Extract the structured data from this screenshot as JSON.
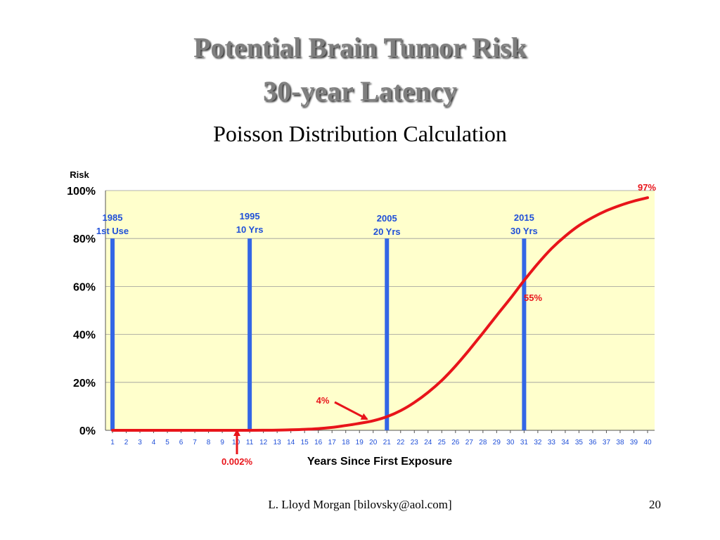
{
  "slide": {
    "title_line1": "Potential Brain Tumor Risk",
    "title_line2": "30-year Latency",
    "subtitle": "Poisson Distribution Calculation",
    "footer": "L. Lloyd Morgan  [bilovsky@aol.com]",
    "page_number": "20"
  },
  "colors": {
    "plot_bg": "#ffffcc",
    "curve": "#e8141a",
    "marker": "#3366e6",
    "marker_text": "#1f4fd8",
    "label_red": "#e8141a",
    "gridline": "#9a9a9a"
  },
  "chart_data": {
    "type": "line",
    "title": "Poisson Distribution Calculation",
    "xlabel": "Years Since First Exposure",
    "ylabel": "Risk",
    "xlim": [
      1,
      40
    ],
    "ylim": [
      0,
      100
    ],
    "grid": true,
    "y_ticks": [
      {
        "value": 0,
        "label": "0%"
      },
      {
        "value": 20,
        "label": "20%"
      },
      {
        "value": 40,
        "label": "40%"
      },
      {
        "value": 60,
        "label": "60%"
      },
      {
        "value": 80,
        "label": "80%"
      },
      {
        "value": 100,
        "label": "100%"
      }
    ],
    "x_ticks": [
      1,
      2,
      3,
      4,
      5,
      6,
      7,
      8,
      9,
      10,
      11,
      12,
      13,
      14,
      15,
      16,
      17,
      18,
      19,
      20,
      21,
      22,
      23,
      24,
      25,
      26,
      27,
      28,
      29,
      30,
      31,
      32,
      33,
      34,
      35,
      36,
      37,
      38,
      39,
      40
    ],
    "series": [
      {
        "x": [
          1,
          2,
          3,
          4,
          5,
          6,
          7,
          8,
          9,
          10,
          11,
          12,
          13,
          14,
          15,
          16,
          17,
          18,
          19,
          20,
          21,
          22,
          23,
          24,
          25,
          26,
          27,
          28,
          29,
          30,
          31,
          32,
          33,
          34,
          35,
          36,
          37,
          38,
          39,
          40
        ],
        "values": [
          0,
          0,
          0,
          0,
          0,
          0,
          0,
          0,
          0,
          0.002,
          0.01,
          0.03,
          0.08,
          0.2,
          0.4,
          0.7,
          1.2,
          2.0,
          2.9,
          4,
          5.7,
          8.2,
          11.6,
          15.8,
          20.8,
          26.8,
          33.5,
          40.6,
          47.9,
          55,
          62.5,
          69.5,
          75.8,
          81,
          85.4,
          88.8,
          91.6,
          93.8,
          95.6,
          97
        ]
      }
    ],
    "markers": [
      {
        "x": 1,
        "line1": "1985",
        "line2": "1st Use"
      },
      {
        "x": 11,
        "line1": "1995",
        "line2": "10 Yrs"
      },
      {
        "x": 21,
        "line1": "2005",
        "line2": "20 Yrs"
      },
      {
        "x": 31,
        "line1": "2015",
        "line2": "30 Yrs"
      }
    ],
    "annotations": [
      {
        "text": "97%",
        "x": 40,
        "y": 97
      },
      {
        "text": "55%",
        "x": 30,
        "y": 55
      },
      {
        "text": "4%",
        "x": 20,
        "y": 4,
        "arrow": true
      },
      {
        "text": "0.002%",
        "x": 10,
        "y": 0.002,
        "arrow": true
      }
    ]
  }
}
